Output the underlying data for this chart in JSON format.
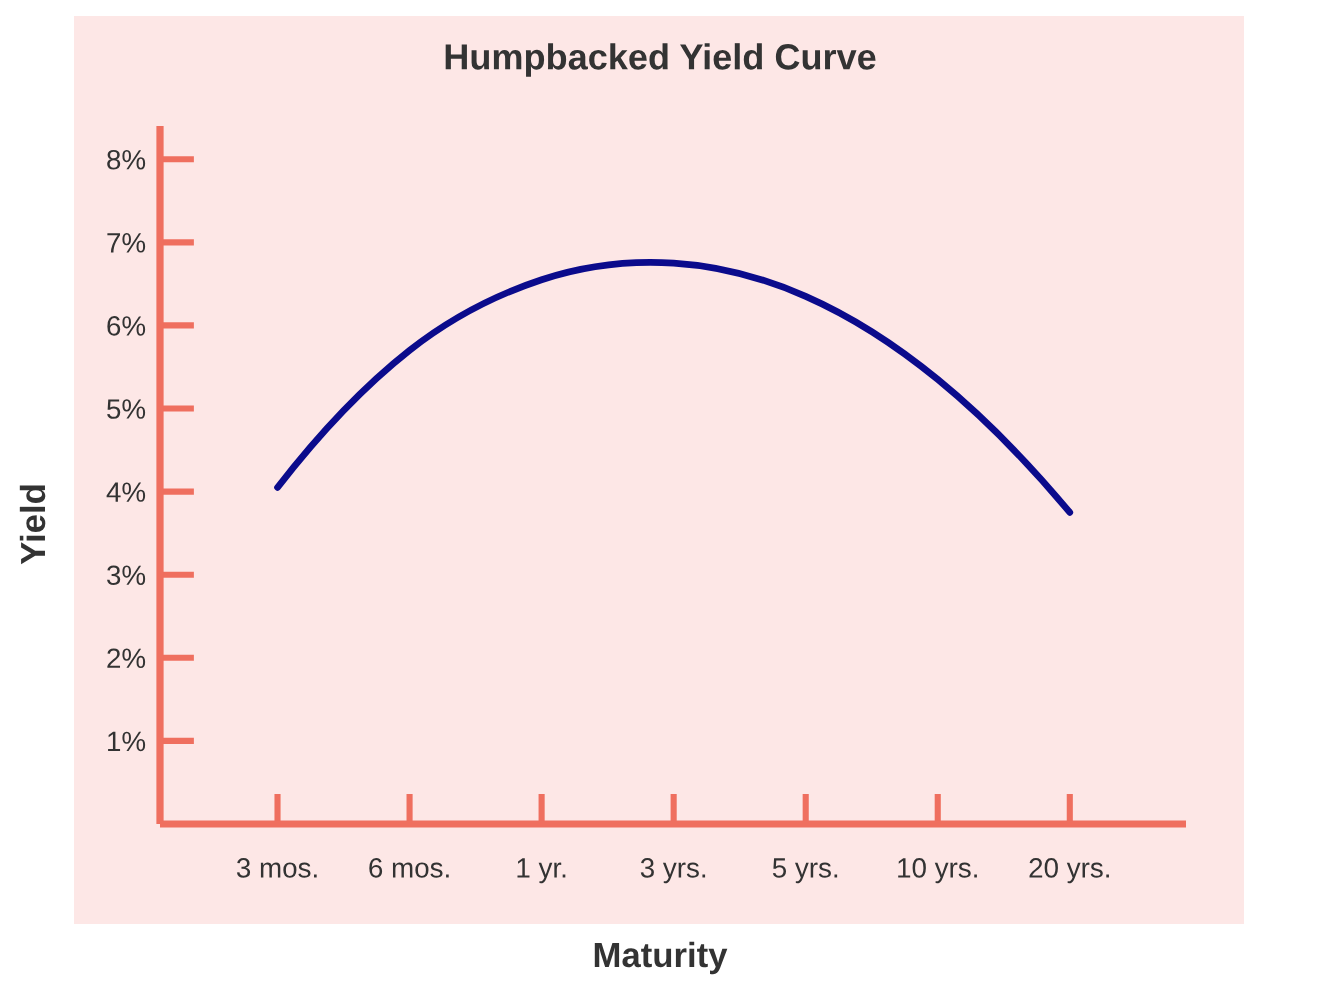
{
  "chart_data": {
    "type": "line",
    "title": "Humpbacked Yield Curve",
    "xlabel": "Maturity",
    "ylabel": "Yield",
    "categories": [
      "3 mos.",
      "6 mos.",
      "1 yr.",
      "3 yrs.",
      "5 yrs.",
      "10 yrs.",
      "20 yrs."
    ],
    "series": [
      {
        "color": "#0b0b8c",
        "values": [
          4.05,
          5.7,
          6.55,
          6.75,
          6.35,
          5.35,
          3.75
        ]
      }
    ],
    "ylim": [
      0,
      8.4
    ],
    "yticks": [
      {
        "value": 1,
        "label": "1%"
      },
      {
        "value": 2,
        "label": "2%"
      },
      {
        "value": 3,
        "label": "3%"
      },
      {
        "value": 4,
        "label": "4%"
      },
      {
        "value": 5,
        "label": "5%"
      },
      {
        "value": 6,
        "label": "6%"
      },
      {
        "value": 7,
        "label": "7%"
      },
      {
        "value": 8,
        "label": "8%"
      }
    ],
    "line_style": "solid"
  }
}
